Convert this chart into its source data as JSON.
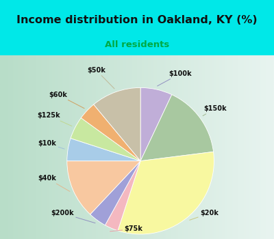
{
  "title": "Income distribution in Oakland, KY (%)",
  "subtitle": "All residents",
  "labels": [
    "$100k",
    "$150k",
    "$20k",
    "$75k",
    "$200k",
    "$40k",
    "$10k",
    "$125k",
    "$60k",
    "$50k"
  ],
  "values": [
    7,
    16,
    32,
    3,
    4,
    13,
    5,
    5,
    4,
    11
  ],
  "colors": [
    "#c0aed8",
    "#a8c8a0",
    "#f8f8a0",
    "#f4b8c0",
    "#a0a0d8",
    "#f8c8a0",
    "#a8cce8",
    "#c8e8a0",
    "#f0b070",
    "#c8c0a8"
  ],
  "background_color": "#00e8e8",
  "chart_bg_left": "#b8ddc8",
  "chart_bg_right": "#e8f4f0",
  "title_color": "#111111",
  "subtitle_color": "#00aa44",
  "label_fontsize": 7,
  "title_fontsize": 11.5,
  "subtitle_fontsize": 9.5,
  "label_color": "#111111"
}
